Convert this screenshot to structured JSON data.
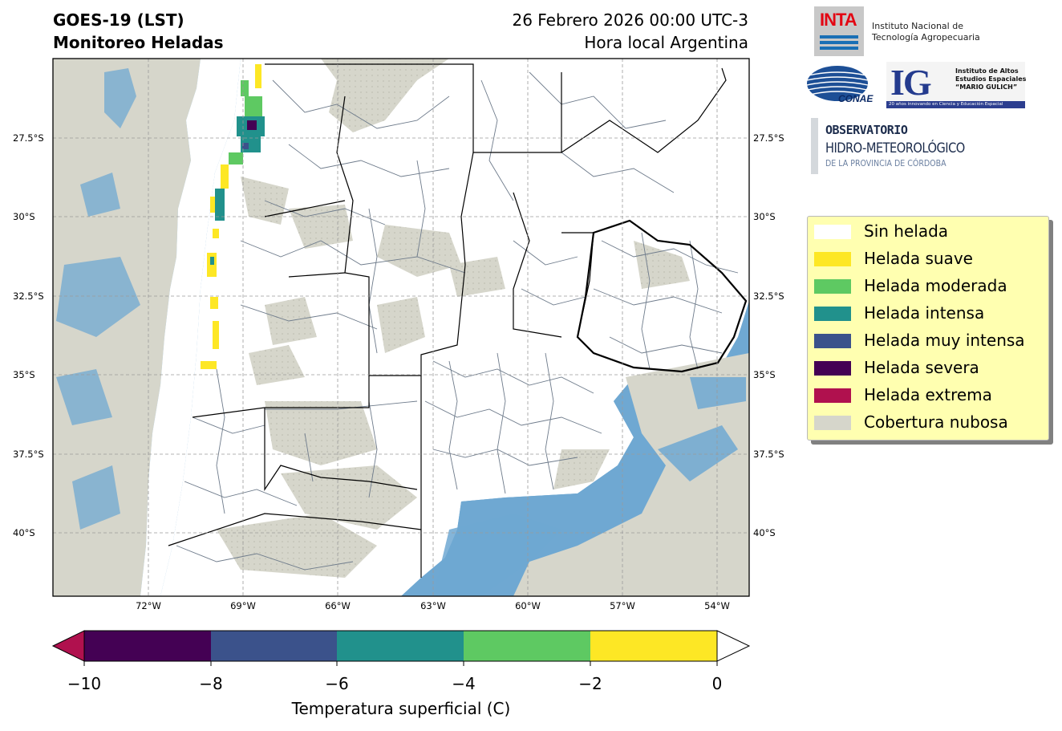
{
  "header": {
    "title_line1": "GOES-19 (LST)",
    "title_line2": "Monitoreo Heladas",
    "date_line1": "26 Febrero 2026 00:00 UTC-3",
    "date_line2": "Hora local Argentina"
  },
  "map": {
    "lat_labels": [
      "27.5°S",
      "30°S",
      "32.5°S",
      "35°S",
      "37.5°S",
      "40°S"
    ],
    "lon_labels": [
      "72°W",
      "69°W",
      "66°W",
      "63°W",
      "60°W",
      "57°W",
      "54°W"
    ],
    "colors": {
      "ocean": "#6fa8d2",
      "land": "#ffffff",
      "cloud": "#d6d6cb",
      "border": "#000000",
      "department": "#6e7b8b"
    }
  },
  "logos": {
    "inta": {
      "mark": "INTA",
      "name_line1": "Instituto Nacional de",
      "name_line2": "Tecnología Agropecuaria"
    },
    "conae": {
      "mark": "CONAE"
    },
    "ig": {
      "mark": "IG",
      "line1": "Instituto de Altos",
      "line2": "Estudios Espaciales",
      "line3": "“MARIO GULICH”",
      "band": "20 años innovando en Ciencia y Educación Espacial"
    },
    "observatorio": {
      "line1": "OBSERVATORIO",
      "line2": "HIDRO-METEOROLÓGICO",
      "line3": "DE LA PROVINCIA DE CÓRDOBA"
    }
  },
  "legend": {
    "items": [
      {
        "label": "Sin helada",
        "color": "#ffffff"
      },
      {
        "label": "Helada suave",
        "color": "#fde725"
      },
      {
        "label": "Helada moderada",
        "color": "#5ec962"
      },
      {
        "label": "Helada intensa",
        "color": "#21918c"
      },
      {
        "label": "Helada muy intensa",
        "color": "#3b528b"
      },
      {
        "label": "Helada severa",
        "color": "#440154"
      },
      {
        "label": "Helada extrema",
        "color": "#b0114e"
      },
      {
        "label": "Cobertura nubosa",
        "color": "#d6d6cb"
      }
    ]
  },
  "colorbar": {
    "label": "Temperatura superficial (C)",
    "ticks": [
      "−10",
      "−8",
      "−6",
      "−4",
      "−2",
      "0"
    ],
    "segments": [
      {
        "range": [
          -10,
          -8
        ],
        "color": "#440154"
      },
      {
        "range": [
          -8,
          -6
        ],
        "color": "#3b528b"
      },
      {
        "range": [
          -6,
          -4
        ],
        "color": "#21918c"
      },
      {
        "range": [
          -4,
          -2
        ],
        "color": "#5ec962"
      },
      {
        "range": [
          -2,
          0
        ],
        "color": "#fde725"
      }
    ],
    "under_color": "#b0114e",
    "over_color": "#ffffff"
  }
}
